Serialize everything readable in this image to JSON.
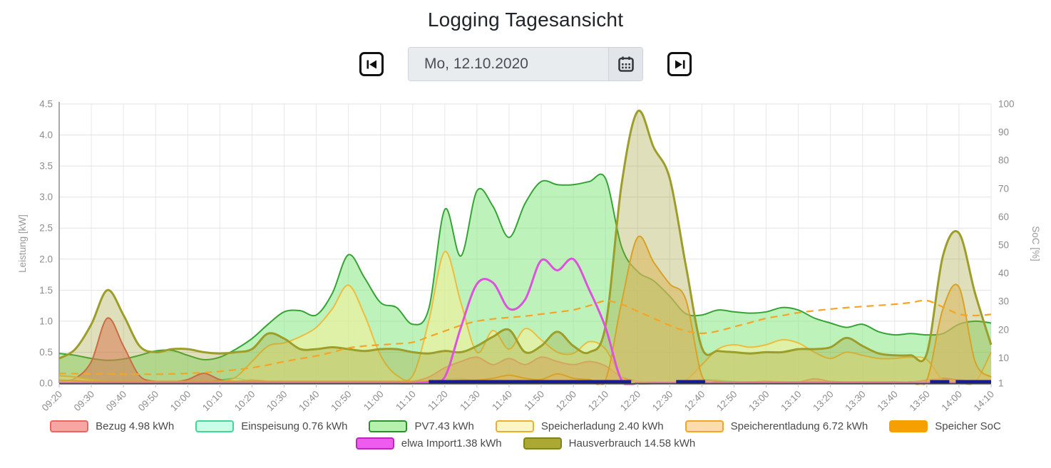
{
  "header": {
    "title": "Logging Tagesansicht",
    "date_value": "Mo, 12.10.2020",
    "icons": {
      "prev": "skip-previous-icon",
      "calendar": "calendar-icon",
      "next": "skip-next-icon"
    }
  },
  "chart_data": {
    "type": "area",
    "title": "",
    "xlabel": "",
    "y_left_label": "Leistung [kW]",
    "y_right_label": "SoC [%]",
    "ylim_left": [
      0,
      4.5
    ],
    "ylim_right": [
      1,
      100
    ],
    "y_left_ticks": [
      "0.0",
      "0.5",
      "1.0",
      "1.5",
      "2.0",
      "2.5",
      "3.0",
      "3.5",
      "4.0",
      "4.5"
    ],
    "y_right_ticks": [
      1,
      10,
      20,
      30,
      40,
      50,
      60,
      70,
      80,
      90,
      100
    ],
    "x_tick_labels": [
      "09:20",
      "09:30",
      "09:40",
      "09:50",
      "10:00",
      "10:10",
      "10:20",
      "10:30",
      "10:40",
      "10:50",
      "11:00",
      "11:10",
      "11:20",
      "11:30",
      "11:40",
      "11:50",
      "12:00",
      "12:10",
      "12:20",
      "12:30",
      "12:40",
      "12:50",
      "13:00",
      "13:10",
      "13:20",
      "13:30",
      "13:40",
      "13:50",
      "14:00",
      "14:10"
    ],
    "x_start_min": 0,
    "x_end_min": 290,
    "sample_step_min": 5,
    "grid": true,
    "legend_position": "bottom",
    "series": [
      {
        "name": "PV",
        "legend": "PV7.43 kWh",
        "kind": "area",
        "axis": "left",
        "stroke": "#36a336",
        "fill": "rgba(125,230,120,0.5)",
        "width": 2,
        "values": [
          0.48,
          0.45,
          0.4,
          0.37,
          0.39,
          0.45,
          0.52,
          0.53,
          0.45,
          0.38,
          0.42,
          0.55,
          0.72,
          0.95,
          1.15,
          1.17,
          1.1,
          1.45,
          2.07,
          1.7,
          1.3,
          1.22,
          0.95,
          1.2,
          2.8,
          2.05,
          3.1,
          2.85,
          2.35,
          2.9,
          3.25,
          3.2,
          3.2,
          3.25,
          3.3,
          2.2,
          1.8,
          1.65,
          1.4,
          1.12,
          1.1,
          1.18,
          1.15,
          1.13,
          1.15,
          1.22,
          1.18,
          1.05,
          0.97,
          0.9,
          0.95,
          0.83,
          0.78,
          0.8,
          0.78,
          0.8,
          0.95,
          1.0,
          0.97
        ]
      },
      {
        "name": "Einspeisung",
        "legend": "Einspeisung 0.76 kWh",
        "kind": "area",
        "axis": "left",
        "stroke": "#41d795",
        "fill": "rgba(150,255,220,0.6)",
        "width": 1.5,
        "values": [
          0.02,
          0.02,
          0.01,
          0.01,
          0.01,
          0.02,
          0.02,
          0.02,
          0.02,
          0.02,
          0.05,
          0.08,
          0.03,
          0.02,
          0.02,
          0.02,
          0.02,
          0.02,
          0.02,
          0.02,
          0.02,
          0.02,
          0.02,
          0.03,
          0.06,
          0.08,
          0.03,
          0.02,
          0.02,
          0.02,
          0.02,
          0.02,
          0.02,
          0.02,
          0.02,
          0.02,
          0.02,
          0.02,
          0.02,
          0.03,
          0.06,
          0.05,
          0.03,
          0.02,
          0.02,
          0.02,
          0.02,
          0.02,
          0.02,
          0.02,
          0.02,
          0.02,
          0.02,
          0.02,
          0.03,
          0.03,
          0.02,
          0.02,
          0.02
        ]
      },
      {
        "name": "Bezug",
        "legend": "Bezug 4.98 kWh",
        "kind": "area",
        "axis": "left",
        "stroke": "#e4564f",
        "fill": "rgba(244,110,104,0.55)",
        "width": 2,
        "values": [
          0.03,
          0.08,
          0.35,
          1.05,
          0.6,
          0.12,
          0.03,
          0.02,
          0.06,
          0.16,
          0.06,
          0.03,
          0.05,
          0.03,
          0.02,
          0.02,
          0.02,
          0.02,
          0.02,
          0.02,
          0.02,
          0.02,
          0.03,
          0.1,
          0.25,
          0.35,
          0.42,
          0.3,
          0.4,
          0.3,
          0.42,
          0.35,
          0.3,
          0.35,
          0.28,
          0.1,
          0.03,
          0.02,
          0.02,
          0.02,
          0.05,
          0.03,
          0.02,
          0.02,
          0.03,
          0.02,
          0.02,
          0.07,
          0.03,
          0.02,
          0.02,
          0.02,
          0.02,
          0.02,
          0.05,
          0.08,
          0.05,
          0.03,
          0.03
        ]
      },
      {
        "name": "Speicherladung",
        "legend": "Speicherladung 2.40 kWh",
        "kind": "area",
        "axis": "left",
        "stroke": "#eebc3e",
        "fill": "rgba(247,240,150,0.55)",
        "width": 2,
        "values": [
          0.12,
          0.1,
          0.06,
          0.03,
          0.02,
          0.02,
          0.02,
          0.02,
          0.02,
          0.02,
          0.03,
          0.1,
          0.35,
          0.6,
          0.65,
          0.75,
          0.9,
          1.2,
          1.58,
          1.1,
          0.45,
          0.13,
          0.12,
          1.0,
          2.12,
          1.3,
          0.5,
          0.85,
          0.55,
          0.88,
          0.7,
          0.5,
          0.48,
          0.67,
          0.55,
          0.1,
          0.03,
          0.02,
          0.02,
          0.05,
          0.3,
          0.55,
          0.62,
          0.58,
          0.62,
          0.7,
          0.65,
          0.5,
          0.4,
          0.5,
          0.45,
          0.4,
          0.4,
          0.42,
          0.38,
          0.05,
          0.02,
          0.02,
          0.5
        ]
      },
      {
        "name": "Speicherentladung",
        "legend": "Speicherentladung 6.72 kWh",
        "kind": "area",
        "axis": "left",
        "stroke": "#f5a526",
        "fill": "rgba(250,200,125,0.6)",
        "width": 2,
        "values": [
          0.05,
          0.04,
          0.03,
          0.03,
          0.03,
          0.03,
          0.03,
          0.03,
          0.03,
          0.03,
          0.03,
          0.03,
          0.03,
          0.03,
          0.03,
          0.03,
          0.03,
          0.03,
          0.03,
          0.03,
          0.03,
          0.03,
          0.03,
          0.03,
          0.03,
          0.05,
          0.05,
          0.08,
          0.13,
          0.08,
          0.06,
          0.15,
          0.08,
          0.06,
          0.05,
          1.3,
          2.35,
          1.95,
          1.6,
          1.35,
          0.12,
          0.03,
          0.02,
          0.02,
          0.02,
          0.02,
          0.02,
          0.02,
          0.02,
          0.02,
          0.02,
          0.02,
          0.02,
          0.02,
          0.05,
          1.2,
          1.55,
          0.35,
          0.1
        ]
      },
      {
        "name": "Hausverbrauch",
        "legend": "Hausverbrauch 14.58 kWh",
        "kind": "area",
        "axis": "left",
        "stroke": "#9d9d2a",
        "fill": "rgba(157,157,42,0.32)",
        "width": 3,
        "values": [
          0.4,
          0.55,
          0.95,
          1.5,
          1.1,
          0.6,
          0.5,
          0.55,
          0.55,
          0.5,
          0.48,
          0.5,
          0.55,
          0.8,
          0.72,
          0.55,
          0.55,
          0.58,
          0.55,
          0.52,
          0.55,
          0.55,
          0.5,
          0.48,
          0.52,
          0.5,
          0.6,
          0.75,
          0.86,
          0.5,
          0.6,
          0.83,
          0.6,
          0.5,
          0.92,
          3.2,
          4.38,
          3.8,
          3.3,
          1.9,
          0.57,
          0.52,
          0.5,
          0.48,
          0.5,
          0.5,
          0.55,
          0.55,
          0.58,
          0.73,
          0.6,
          0.48,
          0.45,
          0.45,
          0.48,
          2.05,
          2.42,
          1.45,
          0.62
        ]
      },
      {
        "name": "Speicher SoC",
        "legend": "Speicher SoC",
        "kind": "dashed-line",
        "axis": "right",
        "stroke": "#f5a526",
        "fill": "none",
        "width": 2.2,
        "values": [
          4.5,
          4.4,
          4.3,
          4.3,
          4.2,
          4.2,
          4.2,
          4.3,
          4.5,
          4.8,
          5.2,
          5.8,
          6.5,
          7.5,
          8.7,
          9.7,
          10.7,
          12.0,
          13.5,
          14.2,
          14.6,
          15.0,
          15.5,
          17.5,
          19.5,
          21.5,
          23.0,
          23.8,
          24.3,
          24.8,
          25.5,
          26.2,
          27.0,
          28.5,
          30.2,
          29.0,
          26.5,
          24.0,
          21.5,
          19.5,
          18.7,
          19.5,
          21.0,
          22.5,
          24.0,
          25.0,
          26.0,
          26.7,
          27.3,
          27.8,
          28.2,
          28.6,
          29.0,
          29.6,
          30.3,
          28.0,
          25.5,
          25.0,
          25.4
        ]
      },
      {
        "name": "elwa Import",
        "legend": "elwa Import1.38 kWh",
        "kind": "line",
        "axis": "left",
        "stroke": "#de52de",
        "fill": "none",
        "width": 3,
        "values": [
          0,
          0,
          0,
          0,
          0,
          0,
          0,
          0,
          0,
          0,
          0,
          0,
          0,
          0,
          0,
          0,
          0,
          0,
          0,
          0,
          0,
          0,
          0,
          0.02,
          0.1,
          0.9,
          1.6,
          1.62,
          1.2,
          1.35,
          1.98,
          1.82,
          2.0,
          1.5,
          0.9,
          0.05,
          0,
          0,
          0,
          0,
          0,
          0,
          0,
          0,
          0,
          0,
          0,
          0,
          0,
          0,
          0,
          0,
          0,
          0,
          0,
          0,
          0,
          0,
          0
        ]
      },
      {
        "name": "elwa aktiv",
        "legend": null,
        "kind": "segments",
        "axis": "left",
        "stroke": "#1b1b94",
        "width": 5,
        "segments_min": [
          [
            115,
            178
          ],
          [
            192,
            201
          ],
          [
            271,
            277
          ],
          [
            279,
            290
          ]
        ]
      }
    ]
  },
  "legend": {
    "rows": [
      [
        {
          "label": "Bezug 4.98 kWh",
          "fill": "#f7a6a4",
          "border": "#ec6660"
        },
        {
          "label": "Einspeisung 0.76 kWh",
          "fill": "#c9ffe9",
          "border": "#41d795"
        },
        {
          "label": "PV7.43 kWh",
          "fill": "#b4f2ae",
          "border": "#2e8f2e"
        },
        {
          "label": "Speicherladung 2.40 kWh",
          "fill": "#fbf6c3",
          "border": "#efae32"
        },
        {
          "label": "Speicherentladung 6.72 kWh",
          "fill": "#fcdcab",
          "border": "#f5a526"
        },
        {
          "label": "Speicher SoC",
          "fill": "#f5a000",
          "border": "#f5a000"
        }
      ],
      [
        {
          "label": "elwa Import1.38 kWh",
          "fill": "#ee5cee",
          "border": "#b92ab9"
        },
        {
          "label": "Hausverbrauch 14.58 kWh",
          "fill": "#a9a934",
          "border": "#83831d"
        }
      ]
    ]
  }
}
